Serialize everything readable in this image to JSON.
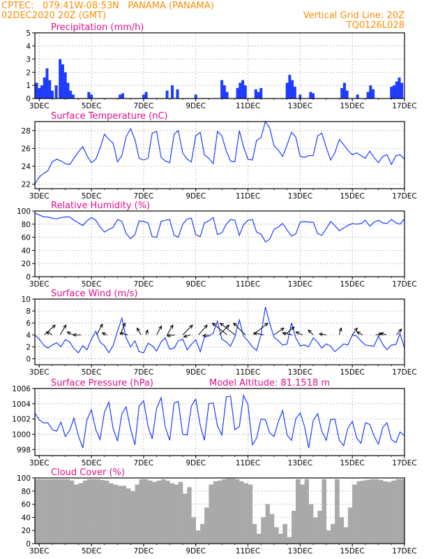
{
  "header": {
    "line1_left": "CPTEC:   079:41W-08:53N   PANAMA (PANAMA)",
    "line2_left": "02DEC2020 20Z (GMT)",
    "line1_right": "Vertical Grid Line: 20Z",
    "line2_right": "TQ0126L028"
  },
  "x_ticks": [
    "3DEC",
    "5DEC",
    "7DEC",
    "9DEC",
    "11DEC",
    "13DEC",
    "15DEC",
    "17DEC"
  ],
  "chart_data": [
    {
      "id": "precip",
      "type": "bar",
      "title": "Precipitation (mm/h)",
      "ylim": [
        0,
        5
      ],
      "yticks": [
        "0",
        "1",
        "2",
        "3",
        "4",
        "5"
      ],
      "x_range_days": [
        2.833,
        17.0
      ],
      "color": "#1e3cff",
      "series": [
        {
          "x": 2.9,
          "y": 1.2
        },
        {
          "x": 3.0,
          "y": 0.8
        },
        {
          "x": 3.1,
          "y": 1.0
        },
        {
          "x": 3.2,
          "y": 1.6
        },
        {
          "x": 3.3,
          "y": 2.3
        },
        {
          "x": 3.4,
          "y": 1.4
        },
        {
          "x": 3.5,
          "y": 0.6
        },
        {
          "x": 3.65,
          "y": 1.0
        },
        {
          "x": 3.8,
          "y": 3.0
        },
        {
          "x": 3.9,
          "y": 2.6
        },
        {
          "x": 4.0,
          "y": 2.0
        },
        {
          "x": 4.1,
          "y": 1.2
        },
        {
          "x": 4.2,
          "y": 0.6
        },
        {
          "x": 4.3,
          "y": 0.3
        },
        {
          "x": 4.9,
          "y": 0.5
        },
        {
          "x": 5.0,
          "y": 0.3
        },
        {
          "x": 6.1,
          "y": 0.3
        },
        {
          "x": 6.2,
          "y": 0.4
        },
        {
          "x": 7.0,
          "y": 0.3
        },
        {
          "x": 7.1,
          "y": 0.5
        },
        {
          "x": 7.9,
          "y": 0.6
        },
        {
          "x": 8.1,
          "y": 1.0
        },
        {
          "x": 8.3,
          "y": 0.7
        },
        {
          "x": 9.0,
          "y": 0.3
        },
        {
          "x": 10.0,
          "y": 1.4
        },
        {
          "x": 10.1,
          "y": 1.0
        },
        {
          "x": 10.2,
          "y": 0.5
        },
        {
          "x": 10.6,
          "y": 0.8
        },
        {
          "x": 10.7,
          "y": 1.2
        },
        {
          "x": 10.8,
          "y": 1.4
        },
        {
          "x": 10.9,
          "y": 1.0
        },
        {
          "x": 11.3,
          "y": 0.7
        },
        {
          "x": 11.4,
          "y": 0.5
        },
        {
          "x": 11.5,
          "y": 0.8
        },
        {
          "x": 12.5,
          "y": 1.2
        },
        {
          "x": 12.6,
          "y": 1.8
        },
        {
          "x": 12.7,
          "y": 1.4
        },
        {
          "x": 12.8,
          "y": 0.9
        },
        {
          "x": 13.0,
          "y": 0.3
        },
        {
          "x": 13.4,
          "y": 0.5
        },
        {
          "x": 13.5,
          "y": 0.4
        },
        {
          "x": 14.6,
          "y": 0.8
        },
        {
          "x": 14.7,
          "y": 1.2
        },
        {
          "x": 14.8,
          "y": 0.6
        },
        {
          "x": 15.2,
          "y": 0.3
        },
        {
          "x": 15.6,
          "y": 0.5
        },
        {
          "x": 15.7,
          "y": 1.0
        },
        {
          "x": 15.8,
          "y": 0.7
        },
        {
          "x": 16.5,
          "y": 0.9
        },
        {
          "x": 16.6,
          "y": 1.0
        },
        {
          "x": 16.7,
          "y": 1.3
        },
        {
          "x": 16.8,
          "y": 1.6
        },
        {
          "x": 16.9,
          "y": 1.2
        }
      ]
    },
    {
      "id": "temp",
      "type": "line",
      "title": "Surface Temperature (nC)",
      "ylim": [
        21.5,
        29
      ],
      "yticks": [
        "22",
        "24",
        "26",
        "28"
      ],
      "ytick_values": [
        22,
        24,
        26,
        28
      ],
      "x_range_days": [
        2.833,
        17.0
      ],
      "color": "#1e3cff",
      "x": [
        2.83,
        3.0,
        3.17,
        3.33,
        3.5,
        3.67,
        3.83,
        4.0,
        4.17,
        4.33,
        4.5,
        4.67,
        4.83,
        5.0,
        5.17,
        5.33,
        5.5,
        5.67,
        5.83,
        6.0,
        6.17,
        6.33,
        6.5,
        6.67,
        6.83,
        7.0,
        7.17,
        7.33,
        7.5,
        7.67,
        7.83,
        8.0,
        8.17,
        8.33,
        8.5,
        8.67,
        8.83,
        9.0,
        9.17,
        9.33,
        9.5,
        9.67,
        9.83,
        10.0,
        10.17,
        10.33,
        10.5,
        10.67,
        10.83,
        11.0,
        11.17,
        11.33,
        11.5,
        11.67,
        11.83,
        12.0,
        12.17,
        12.33,
        12.5,
        12.67,
        12.83,
        13.0,
        13.17,
        13.33,
        13.5,
        13.67,
        13.83,
        14.0,
        14.17,
        14.33,
        14.5,
        14.67,
        14.83,
        15.0,
        15.17,
        15.33,
        15.5,
        15.67,
        15.83,
        16.0,
        16.17,
        16.33,
        16.5,
        16.67,
        16.83,
        17.0
      ],
      "y": [
        22.0,
        22.8,
        23.2,
        23.5,
        24.5,
        24.8,
        24.6,
        24.3,
        24.2,
        24.9,
        25.6,
        26.2,
        25.2,
        24.4,
        24.8,
        26.0,
        27.6,
        27.0,
        26.6,
        24.5,
        25.2,
        27.3,
        28.2,
        27.0,
        24.9,
        24.7,
        24.9,
        27.7,
        27.9,
        25.0,
        24.6,
        24.4,
        27.6,
        28.0,
        25.5,
        24.8,
        24.5,
        27.4,
        27.8,
        25.3,
        24.9,
        24.3,
        27.9,
        27.4,
        25.7,
        24.6,
        24.5,
        28.0,
        26.2,
        24.8,
        24.7,
        26.9,
        27.2,
        29.0,
        28.3,
        26.3,
        25.8,
        25.1,
        26.4,
        27.8,
        27.3,
        25.1,
        25.0,
        25.2,
        25.2,
        27.4,
        27.7,
        26.1,
        24.7,
        25.5,
        27.0,
        26.4,
        25.8,
        25.3,
        25.5,
        25.2,
        24.9,
        25.7,
        25.0,
        24.4,
        25.1,
        25.3,
        24.2,
        25.2,
        25.3,
        24.8
      ]
    },
    {
      "id": "rh",
      "type": "line",
      "title": "Relative Humidity (%)",
      "ylim": [
        0,
        100
      ],
      "yticks": [
        "0",
        "20",
        "40",
        "60",
        "80",
        "100"
      ],
      "ytick_values": [
        0,
        20,
        40,
        60,
        80,
        100
      ],
      "x_range_days": [
        2.833,
        17.0
      ],
      "color": "#1e3cff",
      "x": [
        2.83,
        3.0,
        3.17,
        3.33,
        3.5,
        3.67,
        3.83,
        4.0,
        4.17,
        4.33,
        4.5,
        4.67,
        4.83,
        5.0,
        5.17,
        5.33,
        5.5,
        5.67,
        5.83,
        6.0,
        6.17,
        6.33,
        6.5,
        6.67,
        6.83,
        7.0,
        7.17,
        7.33,
        7.5,
        7.67,
        7.83,
        8.0,
        8.17,
        8.33,
        8.5,
        8.67,
        8.83,
        9.0,
        9.17,
        9.33,
        9.5,
        9.67,
        9.83,
        10.0,
        10.17,
        10.33,
        10.5,
        10.67,
        10.83,
        11.0,
        11.17,
        11.33,
        11.5,
        11.67,
        11.83,
        12.0,
        12.17,
        12.33,
        12.5,
        12.67,
        12.83,
        13.0,
        13.17,
        13.33,
        13.5,
        13.67,
        13.83,
        14.0,
        14.17,
        14.33,
        14.5,
        14.67,
        14.83,
        15.0,
        15.17,
        15.33,
        15.5,
        15.67,
        15.83,
        16.0,
        16.17,
        16.33,
        16.5,
        16.67,
        16.83,
        17.0
      ],
      "y": [
        97,
        94,
        91,
        91,
        89,
        88,
        90,
        91,
        91,
        86,
        82,
        78,
        85,
        90,
        86,
        76,
        68,
        72,
        75,
        87,
        84,
        66,
        58,
        64,
        85,
        84,
        82,
        61,
        60,
        84,
        86,
        87,
        63,
        60,
        80,
        88,
        89,
        64,
        61,
        82,
        85,
        90,
        64,
        67,
        80,
        87,
        86,
        63,
        79,
        86,
        87,
        68,
        65,
        53,
        57,
        72,
        76,
        81,
        71,
        62,
        65,
        83,
        84,
        83,
        83,
        66,
        63,
        73,
        84,
        78,
        70,
        74,
        78,
        81,
        80,
        81,
        86,
        77,
        83,
        86,
        82,
        81,
        87,
        82,
        80,
        88
      ]
    },
    {
      "id": "wind",
      "type": "line",
      "title": "Surface Wind (m/s)",
      "ylim": [
        -1,
        10
      ],
      "yticks": [
        "0",
        "2",
        "4",
        "6",
        "8",
        "10"
      ],
      "ytick_values": [
        0,
        2,
        4,
        6,
        8,
        10
      ],
      "x_range_days": [
        2.833,
        17.0
      ],
      "color": "#1e3cff",
      "x": [
        2.83,
        3.0,
        3.17,
        3.33,
        3.5,
        3.67,
        3.83,
        4.0,
        4.17,
        4.33,
        4.5,
        4.67,
        4.83,
        5.0,
        5.17,
        5.33,
        5.5,
        5.67,
        5.83,
        6.0,
        6.17,
        6.33,
        6.5,
        6.67,
        6.83,
        7.0,
        7.17,
        7.33,
        7.5,
        7.67,
        7.83,
        8.0,
        8.17,
        8.33,
        8.5,
        8.67,
        8.83,
        9.0,
        9.17,
        9.33,
        9.5,
        9.67,
        9.83,
        10.0,
        10.17,
        10.33,
        10.5,
        10.67,
        10.83,
        11.0,
        11.17,
        11.33,
        11.5,
        11.67,
        11.83,
        12.0,
        12.17,
        12.33,
        12.5,
        12.67,
        12.83,
        13.0,
        13.17,
        13.33,
        13.5,
        13.67,
        13.83,
        14.0,
        14.17,
        14.33,
        14.5,
        14.67,
        14.83,
        15.0,
        15.17,
        15.33,
        15.5,
        15.67,
        15.83,
        16.0,
        16.17,
        16.33,
        16.5,
        16.67,
        16.83,
        17.0
      ],
      "y": [
        4.0,
        3.3,
        2.3,
        1.8,
        2.3,
        2.7,
        2.0,
        3.2,
        2.8,
        1.7,
        1.0,
        2.2,
        1.5,
        3.3,
        4.6,
        2.8,
        2.2,
        1.0,
        2.2,
        4.6,
        6.8,
        3.5,
        2.0,
        3.0,
        1.2,
        1.0,
        2.6,
        2.2,
        1.3,
        2.8,
        3.5,
        1.6,
        1.8,
        3.0,
        3.3,
        1.5,
        2.4,
        3.2,
        1.2,
        3.6,
        3.8,
        4.3,
        6.3,
        3.3,
        2.8,
        2.1,
        3.7,
        6.5,
        3.8,
        3.0,
        2.0,
        1.4,
        4.0,
        8.7,
        6.0,
        3.6,
        3.0,
        2.3,
        2.5,
        6.0,
        3.5,
        2.2,
        2.3,
        2.0,
        3.5,
        2.8,
        1.8,
        2.5,
        2.1,
        1.2,
        1.8,
        2.5,
        2.3,
        4.0,
        3.8,
        3.0,
        2.3,
        2.2,
        2.1,
        3.8,
        2.4,
        1.5,
        2.3,
        2.4,
        4.2,
        1.8
      ]
    },
    {
      "id": "pressure",
      "type": "line",
      "title": "Surface Pressure (hPa)",
      "annotation": "Model Altitude: 81.1518 m",
      "ylim": [
        997.2,
        1006
      ],
      "yticks": [
        "998",
        "1000",
        "1002",
        "1004",
        "1006"
      ],
      "ytick_values": [
        998,
        1000,
        1002,
        1004,
        1006
      ],
      "x_range_days": [
        2.833,
        17.0
      ],
      "color": "#1e3cff",
      "x": [
        2.83,
        3.0,
        3.17,
        3.33,
        3.5,
        3.67,
        3.83,
        4.0,
        4.17,
        4.33,
        4.5,
        4.67,
        4.83,
        5.0,
        5.17,
        5.33,
        5.5,
        5.67,
        5.83,
        6.0,
        6.17,
        6.33,
        6.5,
        6.67,
        6.83,
        7.0,
        7.17,
        7.33,
        7.5,
        7.67,
        7.83,
        8.0,
        8.17,
        8.33,
        8.5,
        8.67,
        8.83,
        9.0,
        9.17,
        9.33,
        9.5,
        9.67,
        9.83,
        10.0,
        10.17,
        10.33,
        10.5,
        10.67,
        10.83,
        11.0,
        11.17,
        11.33,
        11.5,
        11.67,
        11.83,
        12.0,
        12.17,
        12.33,
        12.5,
        12.67,
        12.83,
        13.0,
        13.17,
        13.33,
        13.5,
        13.67,
        13.83,
        14.0,
        14.17,
        14.33,
        14.5,
        14.67,
        14.83,
        15.0,
        15.17,
        15.33,
        15.5,
        15.67,
        15.83,
        16.0,
        16.17,
        16.33,
        16.5,
        16.67,
        16.83,
        17.0
      ],
      "y": [
        1002.8,
        1001.9,
        1001.5,
        1001.5,
        1000.6,
        1000.4,
        1001.6,
        999.7,
        1000.5,
        1002.1,
        999.8,
        998.2,
        1001.9,
        1003.2,
        1000.6,
        999.3,
        1002.9,
        1004.2,
        1000.8,
        999.1,
        1002.7,
        1003.6,
        1000.7,
        998.6,
        1003.7,
        1004.4,
        1001.0,
        999.4,
        1003.4,
        1004.8,
        1001.0,
        999.2,
        1004.1,
        1004.3,
        1000.0,
        999.9,
        1003.7,
        1004.6,
        1001.2,
        999.2,
        1004.0,
        1004.1,
        1001.1,
        999.9,
        1004.9,
        1005.0,
        1000.6,
        1001.0,
        1005.1,
        1003.9,
        998.6,
        999.5,
        1002.0,
        1001.9,
        1000.2,
        999.7,
        1001.7,
        1003.1,
        999.9,
        999.2,
        1002.0,
        1002.8,
        1001.0,
        998.2,
        1001.8,
        1002.7,
        1000.4,
        999.2,
        1001.9,
        1002.0,
        999.2,
        998.5,
        1000.8,
        1001.7,
        999.5,
        998.8,
        1001.5,
        1001.3,
        999.8,
        998.7,
        1000.9,
        1001.5,
        999.3,
        998.9,
        1000.3,
        999.8
      ]
    },
    {
      "id": "cloud",
      "type": "area",
      "title": "Cloud Cover (%)",
      "ylim": [
        0,
        100
      ],
      "yticks": [
        "0",
        "20",
        "40",
        "60",
        "80",
        "100"
      ],
      "ytick_values": [
        0,
        20,
        40,
        60,
        80,
        100
      ],
      "x_range_days": [
        2.833,
        17.0
      ],
      "color": "#a9a9a9",
      "x": [
        2.83,
        3.0,
        3.17,
        3.33,
        3.5,
        3.67,
        3.83,
        4.0,
        4.17,
        4.33,
        4.5,
        4.67,
        4.83,
        5.0,
        5.17,
        5.33,
        5.5,
        5.67,
        5.83,
        6.0,
        6.17,
        6.33,
        6.5,
        6.67,
        6.83,
        7.0,
        7.17,
        7.33,
        7.5,
        7.67,
        7.83,
        8.0,
        8.17,
        8.33,
        8.5,
        8.67,
        8.83,
        9.0,
        9.17,
        9.33,
        9.5,
        9.67,
        9.83,
        10.0,
        10.17,
        10.33,
        10.5,
        10.67,
        10.83,
        11.0,
        11.17,
        11.33,
        11.5,
        11.67,
        11.83,
        12.0,
        12.17,
        12.33,
        12.5,
        12.67,
        12.83,
        13.0,
        13.17,
        13.33,
        13.5,
        13.67,
        13.83,
        14.0,
        14.17,
        14.33,
        14.5,
        14.67,
        14.83,
        15.0,
        15.17,
        15.33,
        15.5,
        15.67,
        15.83,
        16.0,
        16.17,
        16.33,
        16.5,
        16.67,
        16.83,
        17.0
      ],
      "y": [
        98,
        98,
        98,
        98,
        98,
        98,
        98,
        98,
        96,
        90,
        92,
        96,
        98,
        98,
        98,
        97,
        96,
        92,
        90,
        88,
        88,
        84,
        80,
        90,
        98,
        98,
        96,
        94,
        96,
        98,
        96,
        92,
        90,
        94,
        76,
        86,
        40,
        20,
        30,
        55,
        90,
        95,
        96,
        98,
        99,
        99,
        98,
        95,
        92,
        90,
        30,
        15,
        40,
        60,
        45,
        25,
        15,
        30,
        10,
        50,
        98,
        90,
        98,
        60,
        40,
        50,
        98,
        20,
        30,
        98,
        40,
        25,
        55,
        90,
        95,
        96,
        97,
        98,
        98,
        97,
        95,
        94,
        96,
        98,
        98,
        98
      ]
    }
  ],
  "wind_vectors": {
    "x": [
      3.2,
      3.5,
      3.8,
      4.3,
      4.6,
      5.2,
      5.6,
      6.1,
      6.4,
      6.9,
      7.1,
      7.5,
      7.9,
      8.2,
      8.5,
      8.8,
      9.1,
      9.5,
      9.9,
      10.2,
      10.5,
      10.9,
      11.2,
      11.6,
      12.0,
      12.4,
      12.7,
      13.1,
      13.5,
      14.0,
      14.5,
      15.0,
      15.4,
      15.9,
      16.3,
      16.7
    ],
    "u": [
      2.2,
      -1.2,
      1.2,
      -1.2,
      -1.6,
      1.2,
      -1.0,
      1.0,
      -1.6,
      -0.8,
      0.3,
      1.0,
      1.2,
      -1.6,
      2.0,
      -1.4,
      1.8,
      -1.2,
      2.0,
      -3.0,
      -3.0,
      -2.4,
      3.0,
      -2.0,
      2.0,
      2.0,
      -2.0,
      -1.4,
      -1.0,
      -1.4,
      0.4,
      1.0,
      -1.2,
      1.2,
      -1.2,
      1.0
    ],
    "v": [
      2.0,
      0.6,
      2.0,
      0.6,
      0.0,
      2.2,
      0.4,
      2.4,
      0.4,
      1.4,
      1.0,
      1.8,
      2.0,
      -0.2,
      2.0,
      -0.4,
      2.0,
      -0.2,
      2.0,
      2.4,
      2.4,
      2.4,
      2.4,
      0.4,
      1.4,
      1.6,
      0.4,
      0.6,
      1.0,
      0.2,
      1.4,
      1.4,
      0.6,
      0.2,
      0.4,
      1.2
    ],
    "y": [
      4.0,
      4.0,
      4.0,
      4.0,
      4.0,
      4.0,
      4.0,
      4.0,
      4.0,
      4.0,
      4.0,
      4.0,
      4.0,
      4.0,
      4.0,
      4.0,
      4.0,
      4.0,
      4.0,
      4.0,
      4.0,
      4.0,
      4.0,
      4.0,
      4.0,
      4.0,
      4.0,
      4.0,
      4.0,
      4.0,
      4.0,
      4.0,
      4.0,
      4.0,
      4.0,
      4.0
    ]
  }
}
